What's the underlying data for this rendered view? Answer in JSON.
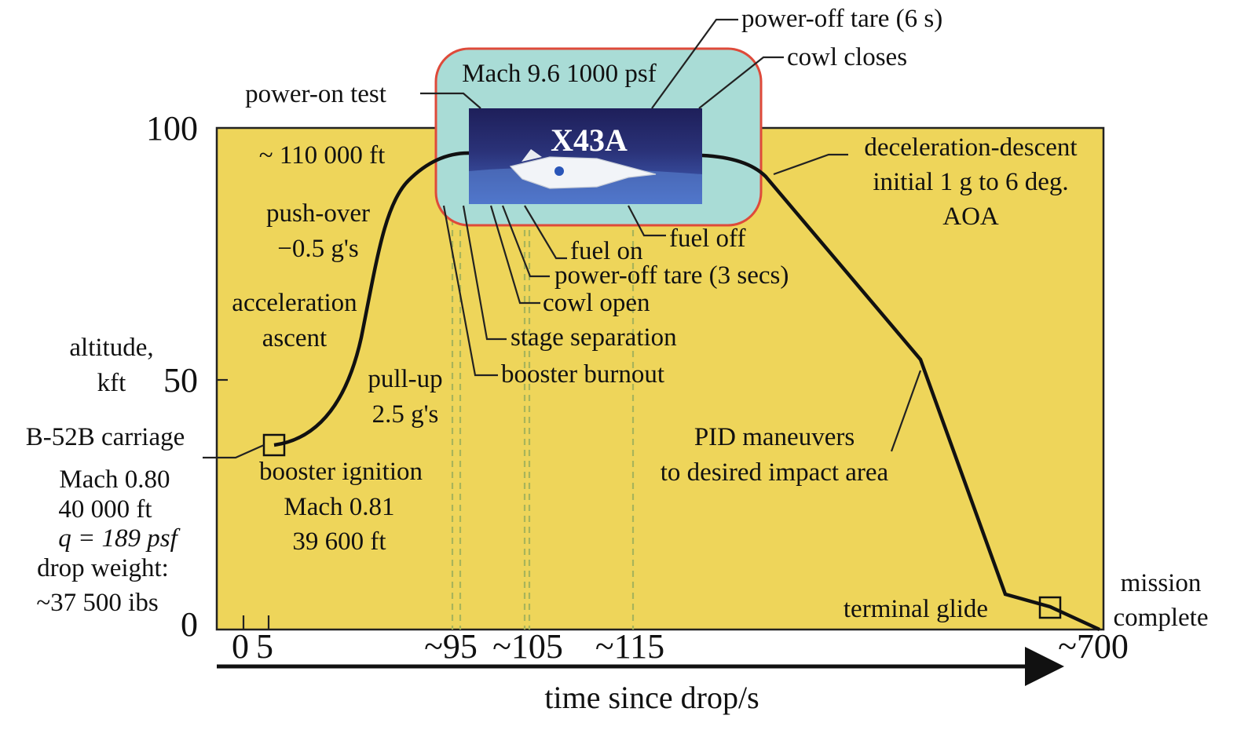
{
  "colors": {
    "plot_bg": "#eed55a",
    "plot_border": "#222222",
    "inset_fill": "#a9dcd6",
    "inset_border": "#de4a3a",
    "vehicle_bg_top": "#1e1f5a",
    "vehicle_bg_bottom": "#4464c0",
    "trajectory": "#111111",
    "dashed": "#a8b45a"
  },
  "y_axis": {
    "title_line1": "altitude,",
    "title_line2": "kft",
    "ticks": [
      "100",
      "50",
      "0"
    ]
  },
  "x_axis": {
    "title": "time since drop/s",
    "ticks": [
      "0",
      "5",
      "~95",
      "~105",
      "~115",
      "~700"
    ]
  },
  "inset": {
    "condition": "Mach 9.6 1000 psf",
    "vehicle_name": "X43A"
  },
  "labels": {
    "power_off_tare_6s": "power-off tare (6 s)",
    "cowl_closes": "cowl closes",
    "power_on_test": "power-on test",
    "altitude_110k": "~ 110 000 ft",
    "push_over_1": "push-over",
    "push_over_2": "−0.5 g's",
    "acceleration_1": "acceleration",
    "acceleration_2": "ascent",
    "pull_up_1": "pull-up",
    "pull_up_2": "2.5 g's",
    "carriage_title": "B-52B carriage",
    "carriage_mach": "Mach 0.80",
    "carriage_alt": "40 000 ft",
    "carriage_q": "q = 189 psf",
    "drop_weight_1": "drop weight:",
    "drop_weight_2": "~37 500 ibs",
    "booster_ignition_1": "booster ignition",
    "booster_ignition_2": "Mach 0.81",
    "booster_ignition_3": "39 600 ft",
    "fuel_off": "fuel off",
    "fuel_on": "fuel on",
    "power_off_tare_3s": "power-off tare (3 secs)",
    "cowl_open": "cowl open",
    "stage_separation": "stage separation",
    "booster_burnout": "booster burnout",
    "decel_1": "deceleration-descent",
    "decel_2": "initial 1 g to 6 deg.",
    "decel_3": "AOA",
    "pid_1": "PID maneuvers",
    "pid_2": "to desired impact area",
    "terminal_glide": "terminal glide",
    "mission_1": "mission",
    "mission_2": "complete"
  }
}
